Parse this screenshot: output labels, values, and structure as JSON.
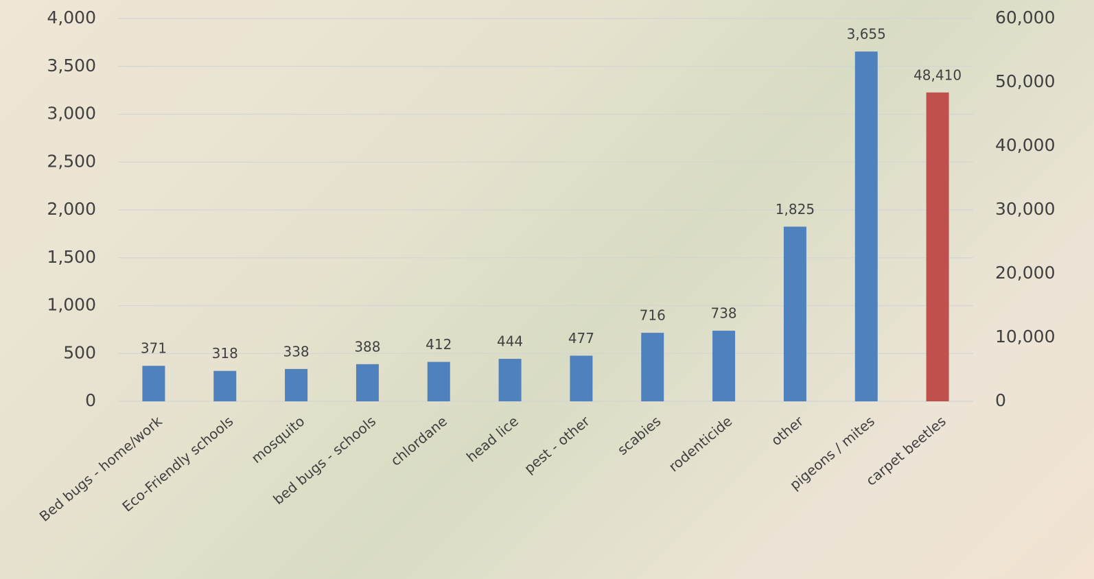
{
  "chart_data": {
    "type": "bar",
    "categories": [
      "Bed bugs - home/work",
      "Eco-Friendly schools",
      "mosquito",
      "bed bugs - schools",
      "chlordane",
      "head lice",
      "pest - other",
      "scabies",
      "rodenticide",
      "other",
      "pigeons / mites",
      "carpet beetles"
    ],
    "series": [
      {
        "color": "#4f81bd",
        "values": [
          371,
          318,
          338,
          388,
          412,
          444,
          477,
          716,
          738,
          1825,
          3655,
          null
        ],
        "value_labels": [
          "371",
          "318",
          "338",
          "388",
          "412",
          "444",
          "477",
          "716",
          "738",
          "1,825",
          "3,655",
          null
        ]
      },
      {
        "color": "#c0504d",
        "axis": "y2",
        "values": [
          null,
          null,
          null,
          null,
          null,
          null,
          null,
          null,
          null,
          null,
          null,
          48410
        ],
        "value_labels": [
          null,
          null,
          null,
          null,
          null,
          null,
          null,
          null,
          null,
          null,
          null,
          "48,410"
        ]
      }
    ],
    "ylim": [
      0,
      4000
    ],
    "yticks": [
      0,
      500,
      {
        "value": 1000,
        "label": "1,000"
      },
      {
        "value": 1500,
        "label": "1,500"
      },
      {
        "value": 2000,
        "label": "2,000"
      },
      {
        "value": 2500,
        "label": "2,500"
      },
      {
        "value": 3000,
        "label": "3,000"
      },
      {
        "value": 3500,
        "label": "3,500"
      },
      {
        "value": 4000,
        "label": "4,000"
      }
    ],
    "y2lim": [
      0,
      60000
    ],
    "y2ticks": [
      0,
      {
        "value": 10000,
        "label": "10,000"
      },
      {
        "value": 20000,
        "label": "20,000"
      },
      {
        "value": 30000,
        "label": "30,000"
      },
      {
        "value": 40000,
        "label": "40,000"
      },
      {
        "value": 50000,
        "label": "50,000"
      },
      {
        "value": 60000,
        "label": "60,000"
      }
    ],
    "grid": true
  }
}
